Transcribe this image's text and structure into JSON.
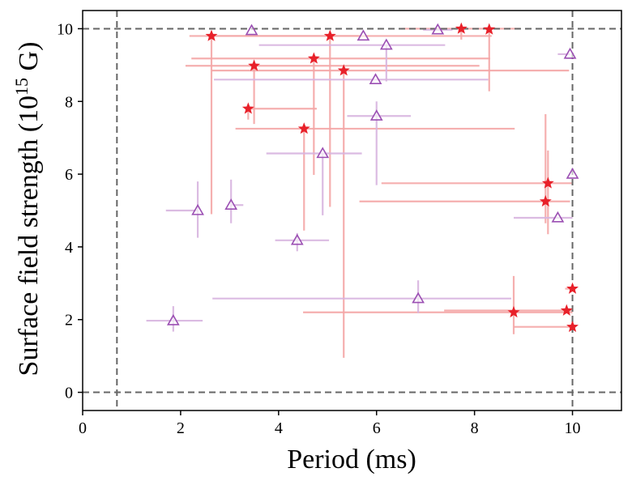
{
  "chart_data": {
    "type": "scatter",
    "xlabel": "Period (ms)",
    "ylabel": {
      "prefix": "Surface field strength (10",
      "exponent": "15",
      "suffix": " G)"
    },
    "xlim": [
      0,
      11
    ],
    "ylim": [
      -0.5,
      10.5
    ],
    "x_ticks": [
      "0",
      "2",
      "4",
      "6",
      "8",
      "10"
    ],
    "y_ticks": [
      "0",
      "2",
      "4",
      "6",
      "8",
      "10"
    ],
    "grid": false,
    "legend": "none",
    "reference_lines": {
      "vertical": [
        0.7,
        10.0
      ],
      "horizontal": [
        0.0,
        10.0
      ],
      "color": "#666666",
      "style": "dashed"
    },
    "series": [
      {
        "marker": "star",
        "color": "#e8212a",
        "errorbar_color": "#f4a6a6",
        "points": [
          {
            "x": 2.63,
            "y": 9.8,
            "xerr": [
              0.45,
              3.0
            ],
            "yerr": [
              4.9,
              0.1
            ]
          },
          {
            "x": 3.5,
            "y": 8.98,
            "xerr": [
              1.4,
              4.6
            ],
            "yerr": [
              1.6,
              0.0
            ]
          },
          {
            "x": 3.38,
            "y": 7.8,
            "xerr": [
              0.0,
              1.4
            ],
            "yerr": [
              0.3,
              0.0
            ]
          },
          {
            "x": 4.52,
            "y": 7.25,
            "xerr": [
              1.4,
              4.3
            ],
            "yerr": [
              2.8,
              0.0
            ]
          },
          {
            "x": 4.72,
            "y": 9.18,
            "xerr": [
              2.5,
              3.6
            ],
            "yerr": [
              3.2,
              0.0
            ]
          },
          {
            "x": 5.05,
            "y": 9.8,
            "xerr": [
              2.4,
              3.3
            ],
            "yerr": [
              4.7,
              0.0
            ]
          },
          {
            "x": 5.33,
            "y": 8.85,
            "xerr": [
              2.7,
              4.6
            ],
            "yerr": [
              7.9,
              0.0
            ]
          },
          {
            "x": 7.73,
            "y": 10.0,
            "xerr": [
              1.2,
              1.2
            ],
            "yerr": [
              0.3,
              0.0
            ]
          },
          {
            "x": 8.3,
            "y": 9.98,
            "xerr": [
              0.0,
              0.0
            ],
            "yerr": [
              1.7,
              0.0
            ]
          },
          {
            "x": 9.5,
            "y": 5.75,
            "xerr": [
              3.4,
              0.5
            ],
            "yerr": [
              1.4,
              0.9
            ]
          },
          {
            "x": 9.45,
            "y": 5.25,
            "xerr": [
              3.8,
              0.5
            ],
            "yerr": [
              0.6,
              2.4
            ]
          },
          {
            "x": 8.8,
            "y": 2.2,
            "xerr": [
              4.3,
              1.2
            ],
            "yerr": [
              0.6,
              1.0
            ]
          },
          {
            "x": 9.88,
            "y": 2.25,
            "xerr": [
              2.5,
              0.1
            ],
            "yerr": [
              0.0,
              0.0
            ]
          },
          {
            "x": 10.0,
            "y": 2.85,
            "xerr": [
              0.15,
              0.0
            ],
            "yerr": [
              0.0,
              0.0
            ]
          },
          {
            "x": 10.0,
            "y": 1.8,
            "xerr": [
              1.2,
              0.0
            ],
            "yerr": [
              0.0,
              0.0
            ]
          }
        ]
      },
      {
        "marker": "triangle",
        "color": "#9b4fb3",
        "errorbar_color": "#d7b4df",
        "points": [
          {
            "x": 1.85,
            "y": 1.97,
            "xerr": [
              0.55,
              0.6
            ],
            "yerr": [
              0.3,
              0.4
            ]
          },
          {
            "x": 2.35,
            "y": 5.0,
            "xerr": [
              0.65,
              0.0
            ],
            "yerr": [
              0.75,
              0.8
            ]
          },
          {
            "x": 3.03,
            "y": 5.15,
            "xerr": [
              0.0,
              0.25
            ],
            "yerr": [
              0.5,
              0.7
            ]
          },
          {
            "x": 3.45,
            "y": 9.95,
            "xerr": [
              0.0,
              0.0
            ],
            "yerr": [
              0.0,
              0.0
            ]
          },
          {
            "x": 4.38,
            "y": 4.18,
            "xerr": [
              0.45,
              0.65
            ],
            "yerr": [
              0.3,
              0.2
            ]
          },
          {
            "x": 4.9,
            "y": 6.57,
            "xerr": [
              1.15,
              0.8
            ],
            "yerr": [
              1.7,
              0.0
            ]
          },
          {
            "x": 5.73,
            "y": 9.8,
            "xerr": [
              0.0,
              0.0
            ],
            "yerr": [
              0.0,
              0.0
            ]
          },
          {
            "x": 5.98,
            "y": 8.6,
            "xerr": [
              3.3,
              2.3
            ],
            "yerr": [
              0.0,
              0.0
            ]
          },
          {
            "x": 6.0,
            "y": 7.6,
            "xerr": [
              0.6,
              0.7
            ],
            "yerr": [
              1.9,
              0.4
            ]
          },
          {
            "x": 6.2,
            "y": 9.55,
            "xerr": [
              2.6,
              1.2
            ],
            "yerr": [
              1.0,
              0.0
            ]
          },
          {
            "x": 6.85,
            "y": 2.58,
            "xerr": [
              4.2,
              1.9
            ],
            "yerr": [
              0.4,
              0.5
            ]
          },
          {
            "x": 7.25,
            "y": 9.97,
            "xerr": [
              0.3,
              0.3
            ],
            "yerr": [
              0.0,
              0.0
            ]
          },
          {
            "x": 9.7,
            "y": 4.8,
            "xerr": [
              0.9,
              0.3
            ],
            "yerr": [
              0.0,
              0.0
            ]
          },
          {
            "x": 9.95,
            "y": 9.3,
            "xerr": [
              0.25,
              0.0
            ],
            "yerr": [
              0.0,
              0.0
            ]
          },
          {
            "x": 10.0,
            "y": 6.0,
            "xerr": [
              0.0,
              0.0
            ],
            "yerr": [
              0.0,
              0.0
            ]
          }
        ]
      }
    ]
  }
}
